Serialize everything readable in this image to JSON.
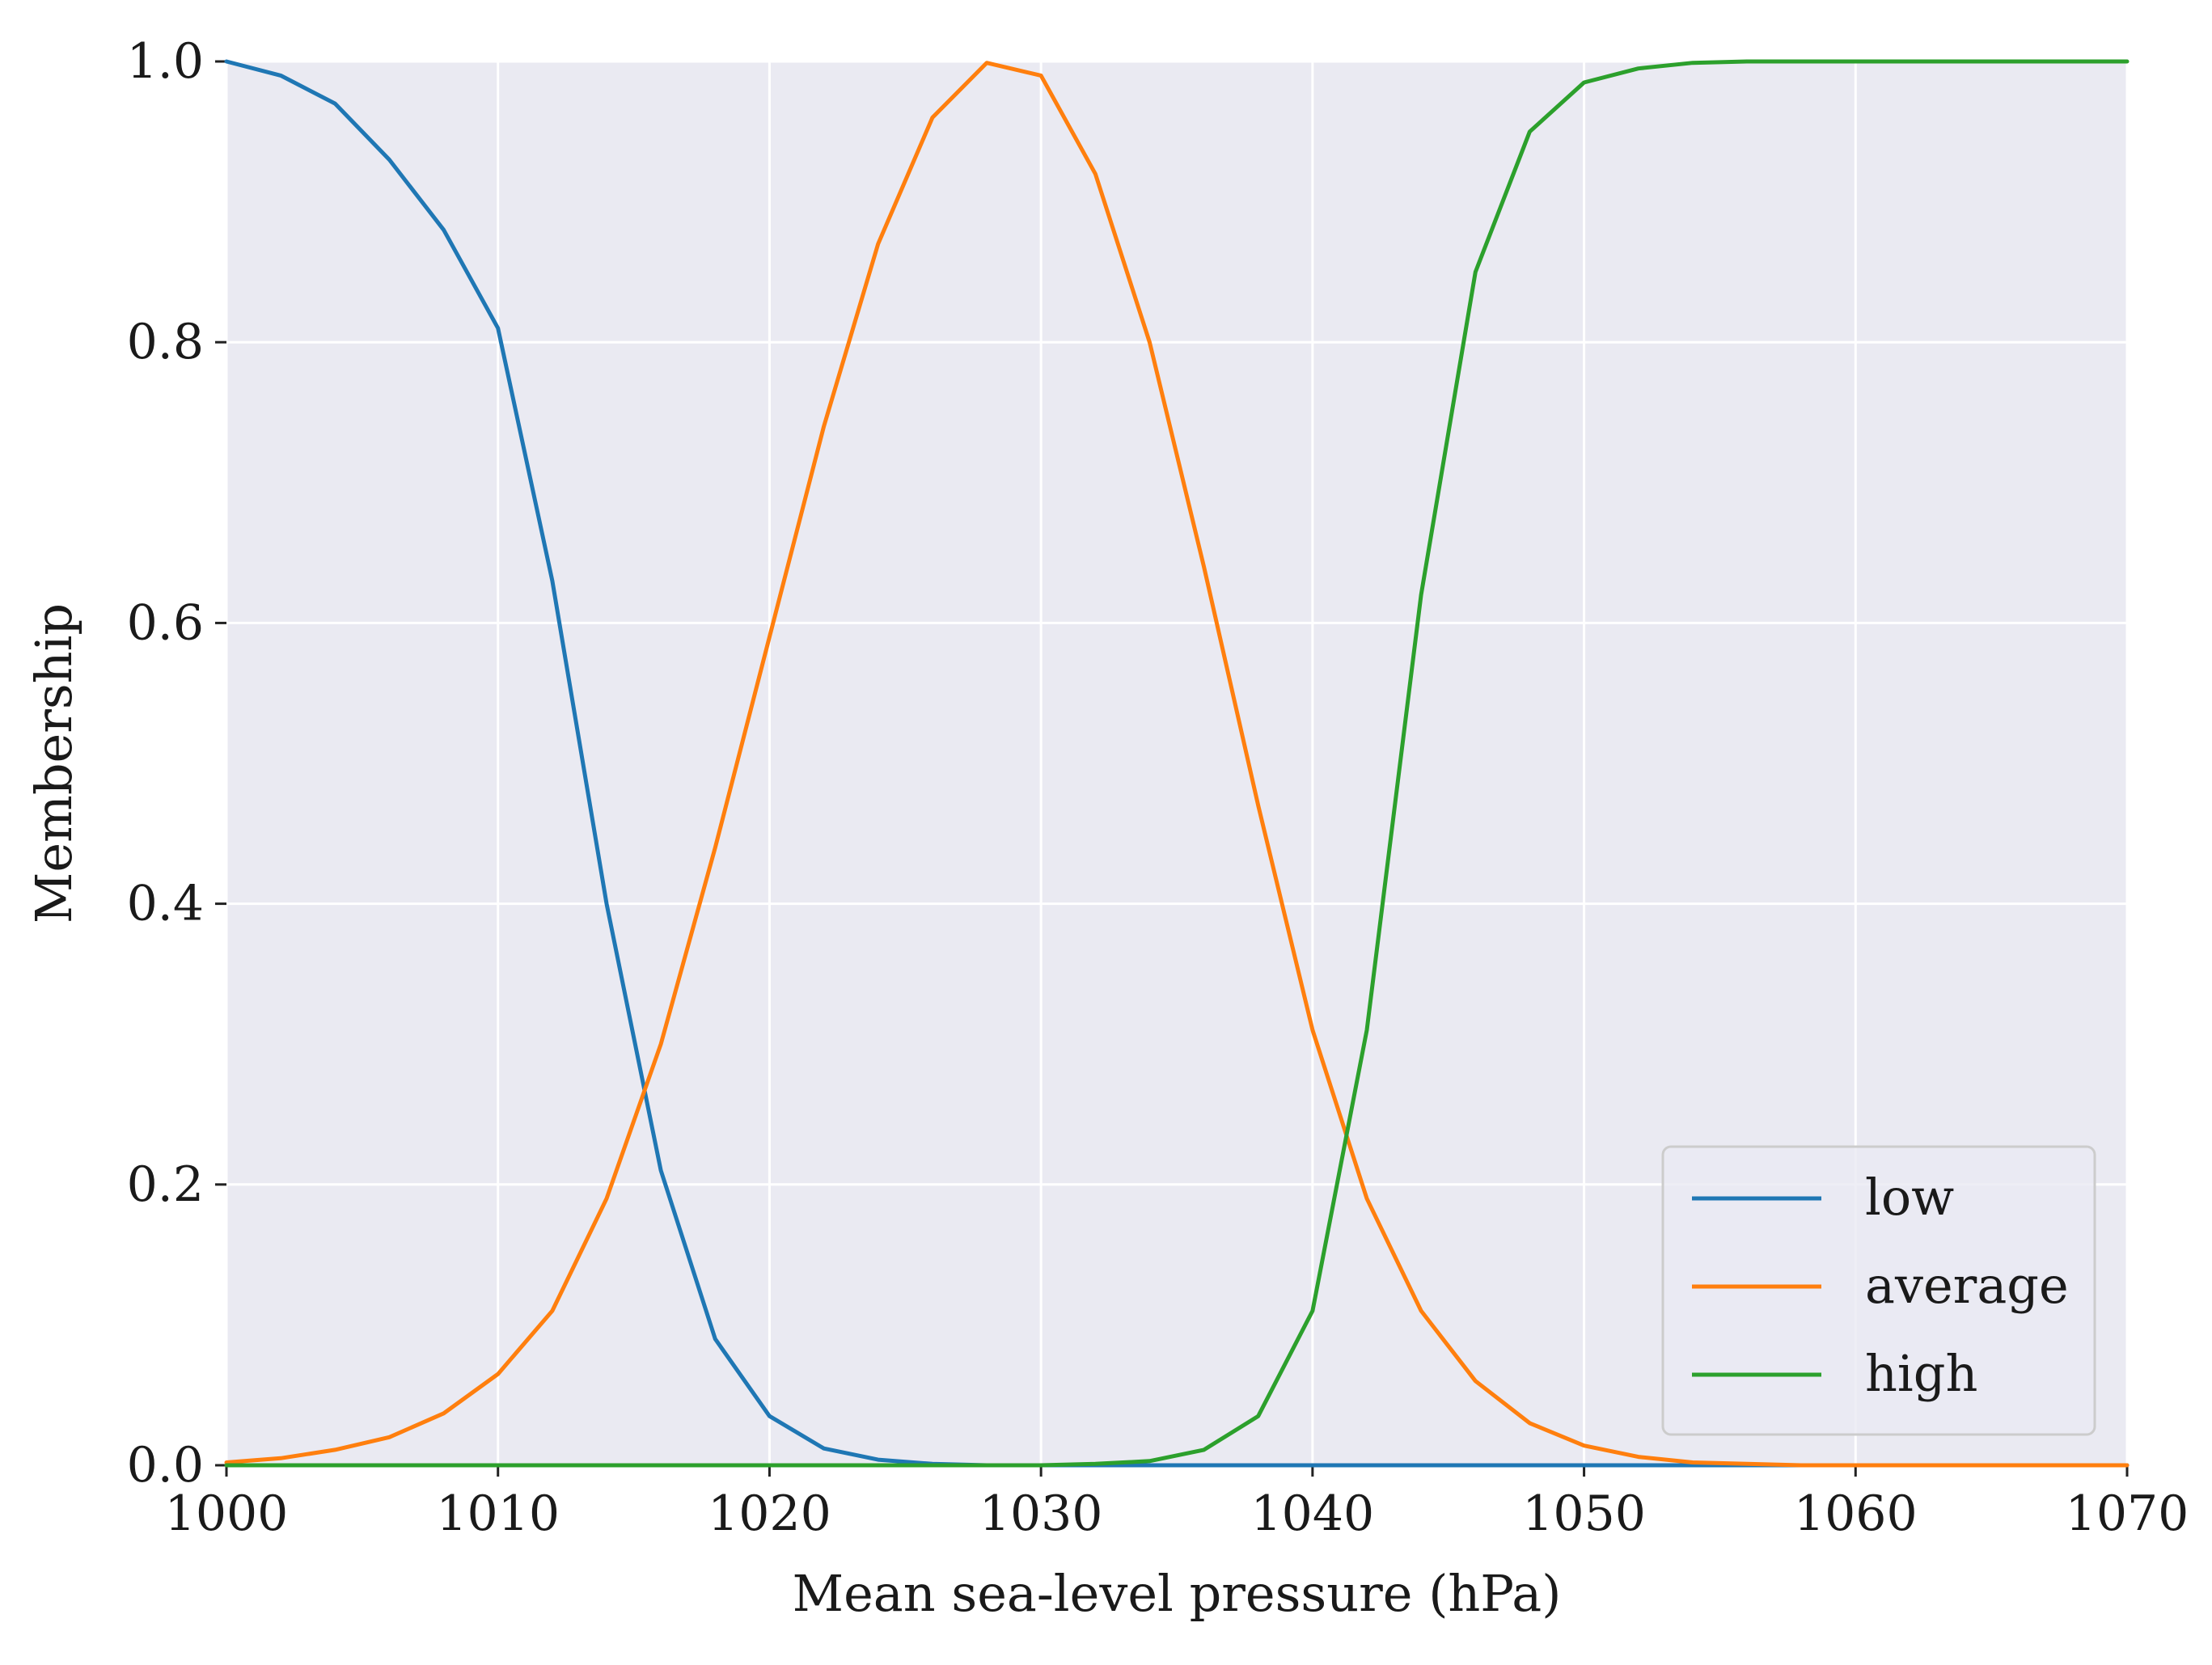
{
  "chart_data": {
    "type": "line",
    "title": "",
    "xlabel": "Mean sea-level pressure (hPa)",
    "ylabel": "Membership",
    "xlim": [
      1000,
      1070
    ],
    "ylim": [
      0,
      1
    ],
    "x_ticks": [
      "1000",
      "1010",
      "1020",
      "1030",
      "1040",
      "1050",
      "1060",
      "1070"
    ],
    "y_ticks": [
      "0.0",
      "0.2",
      "0.4",
      "0.6",
      "0.8",
      "1.0"
    ],
    "grid": true,
    "background": "#eaeaf2",
    "legend_position": "lower right",
    "x": [
      1000,
      1002,
      1004,
      1006,
      1008,
      1010,
      1012,
      1014,
      1016,
      1018,
      1020,
      1022,
      1024,
      1026,
      1028,
      1030,
      1032,
      1034,
      1036,
      1038,
      1040,
      1042,
      1044,
      1046,
      1048,
      1050,
      1052,
      1054,
      1056,
      1058,
      1060,
      1062,
      1064,
      1066,
      1068,
      1070
    ],
    "series": [
      {
        "name": "low",
        "color": "#1f77b4",
        "values": [
          1.0,
          0.99,
          0.97,
          0.93,
          0.88,
          0.81,
          0.63,
          0.4,
          0.21,
          0.09,
          0.035,
          0.012,
          0.004,
          0.001,
          0,
          0,
          0,
          0,
          0,
          0,
          0,
          0,
          0,
          0,
          0,
          0,
          0,
          0,
          0,
          0,
          0,
          0,
          0,
          0,
          0,
          0
        ]
      },
      {
        "name": "average",
        "color": "#ff7f0e",
        "values": [
          0.002,
          0.005,
          0.011,
          0.02,
          0.037,
          0.065,
          0.11,
          0.19,
          0.3,
          0.44,
          0.59,
          0.74,
          0.87,
          0.96,
          0.999,
          0.99,
          0.92,
          0.8,
          0.64,
          0.47,
          0.31,
          0.19,
          0.11,
          0.06,
          0.03,
          0.014,
          0.006,
          0.002,
          0.001,
          0,
          0,
          0,
          0,
          0,
          0,
          0
        ]
      },
      {
        "name": "high",
        "color": "#2ca02c",
        "values": [
          0,
          0,
          0,
          0,
          0,
          0,
          0,
          0,
          0,
          0,
          0,
          0,
          0,
          0,
          0,
          0,
          0.001,
          0.003,
          0.011,
          0.035,
          0.11,
          0.31,
          0.62,
          0.85,
          0.95,
          0.985,
          0.995,
          0.999,
          1.0,
          1.0,
          1.0,
          1.0,
          1.0,
          1.0,
          1.0,
          1.0
        ]
      }
    ]
  }
}
